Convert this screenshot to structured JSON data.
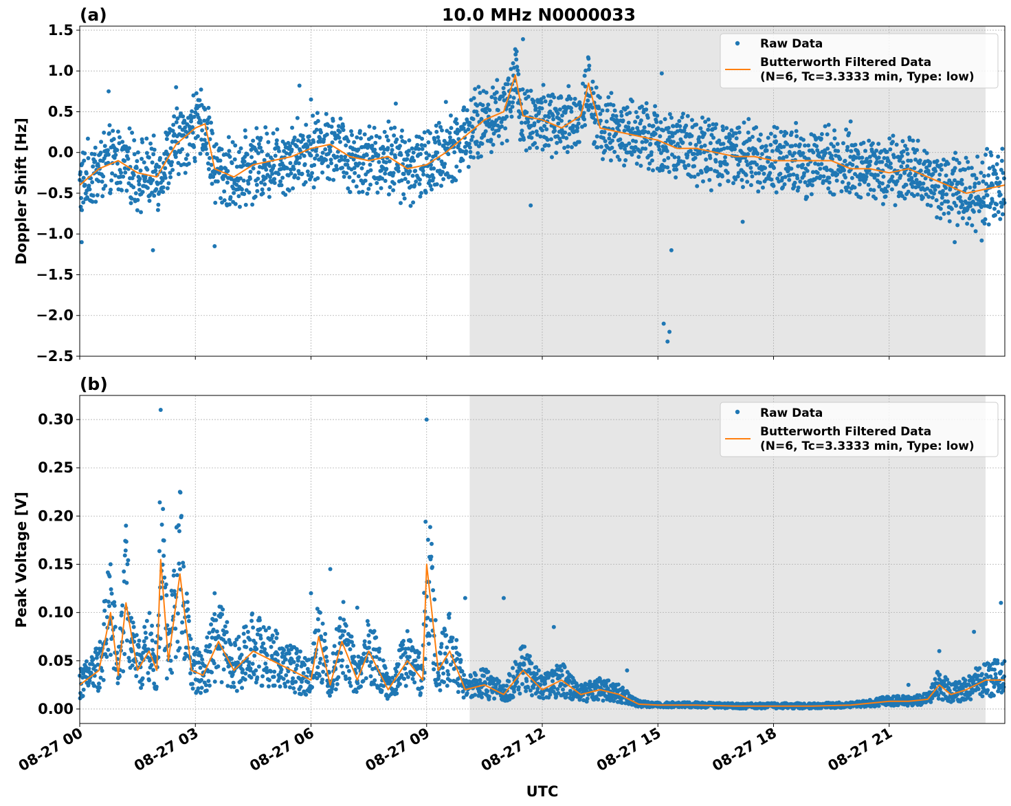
{
  "figure": {
    "title": "10.0 MHz N0000033",
    "xlabel": "UTC",
    "x_tick_labels": [
      "08-27 00",
      "08-27 03",
      "08-27 06",
      "08-27 09",
      "08-27 12",
      "08-27 15",
      "08-27 18",
      "08-27 21"
    ],
    "night_shading": {
      "start": "08-27 10:07",
      "end": "08-27 23:30",
      "color": "#e6e6e6"
    }
  },
  "legend": {
    "raw_label": "Raw Data",
    "filtered_label_line1": "Butterworth Filtered Data",
    "filtered_label_line2": "(N=6, Tc=3.3333 min, Type: low)"
  },
  "colors": {
    "raw": "#1f77b4",
    "filtered": "#ff7f0e",
    "shade": "#e6e6e6",
    "grid": "#b0b0b0"
  },
  "chart_data": [
    {
      "type": "scatter",
      "panel_label": "(a)",
      "ylabel": "Doppler Shift [Hz]",
      "ylim": [
        -2.5,
        1.55
      ],
      "xlim": [
        "08-27 00:00",
        "08-28 00:00"
      ],
      "y_ticks": [
        1.5,
        1.0,
        0.5,
        0.0,
        -0.5,
        -1.0,
        -1.5,
        -2.0,
        -2.5
      ],
      "y_tick_labels": [
        "1.5",
        "1.0",
        "0.5",
        "0.0",
        "−0.5",
        "−1.0",
        "−1.5",
        "−2.0",
        "−2.5"
      ],
      "legend_position": "top-right",
      "grid": true,
      "series": [
        {
          "name": "Butterworth Filtered Data",
          "x_hours": [
            0,
            0.5,
            1,
            1.5,
            2,
            2.5,
            3,
            3.25,
            3.5,
            4,
            4.5,
            5,
            5.5,
            6,
            6.5,
            7,
            7.5,
            8,
            8.5,
            9,
            9.5,
            10,
            10.5,
            11,
            11.3,
            11.5,
            12,
            12.5,
            13,
            13.2,
            13.5,
            14,
            14.5,
            15,
            15.5,
            16,
            16.5,
            17,
            17.5,
            18,
            18.5,
            19,
            19.5,
            20,
            20.5,
            21,
            21.5,
            22,
            22.5,
            23,
            23.5,
            24
          ],
          "y": [
            -0.4,
            -0.2,
            -0.1,
            -0.25,
            -0.3,
            0.1,
            0.3,
            0.35,
            -0.2,
            -0.3,
            -0.15,
            -0.1,
            -0.05,
            0.05,
            0.1,
            -0.05,
            -0.1,
            -0.05,
            -0.2,
            -0.15,
            0.0,
            0.2,
            0.4,
            0.5,
            0.95,
            0.45,
            0.4,
            0.3,
            0.45,
            0.85,
            0.3,
            0.25,
            0.2,
            0.15,
            0.05,
            0.05,
            0.0,
            -0.05,
            -0.05,
            -0.1,
            -0.1,
            -0.1,
            -0.1,
            -0.2,
            -0.2,
            -0.25,
            -0.2,
            -0.3,
            -0.4,
            -0.5,
            -0.45,
            -0.4
          ]
        },
        {
          "name": "Raw Data",
          "x_hours": [
            0.05,
            0.75,
            1.9,
            2.5,
            2.95,
            3.5,
            5.7,
            6.0,
            8.2,
            9.5,
            11.5,
            11.7,
            13.2,
            15.1,
            15.15,
            15.25,
            15.3,
            15.35,
            17.2,
            20.0,
            22.7,
            23.4
          ],
          "y": [
            -1.1,
            0.75,
            -1.2,
            0.8,
            0.7,
            -1.15,
            0.82,
            0.65,
            0.6,
            0.62,
            1.39,
            -0.65,
            1.15,
            0.97,
            -2.1,
            -2.32,
            -2.2,
            -1.2,
            -0.85,
            0.38,
            -1.1,
            -1.08
          ]
        }
      ]
    },
    {
      "type": "scatter",
      "panel_label": "(b)",
      "ylabel": "Peak Voltage [V]",
      "ylim": [
        -0.015,
        0.325
      ],
      "xlim": [
        "08-27 00:00",
        "08-28 00:00"
      ],
      "y_ticks": [
        0.3,
        0.25,
        0.2,
        0.15,
        0.1,
        0.05,
        0.0
      ],
      "y_tick_labels": [
        "0.30",
        "0.25",
        "0.20",
        "0.15",
        "0.10",
        "0.05",
        "0.00"
      ],
      "legend_position": "top-right",
      "grid": true,
      "series": [
        {
          "name": "Butterworth Filtered Data",
          "x_hours": [
            0,
            0.5,
            0.8,
            1.0,
            1.2,
            1.5,
            1.8,
            2.0,
            2.1,
            2.3,
            2.6,
            2.9,
            3.2,
            3.6,
            4.0,
            4.5,
            5.0,
            5.5,
            6.0,
            6.2,
            6.5,
            6.8,
            7.2,
            7.5,
            8.0,
            8.5,
            8.9,
            9.0,
            9.3,
            9.6,
            10.0,
            10.5,
            11.0,
            11.5,
            12.0,
            12.5,
            13.0,
            13.5,
            14.0,
            14.5,
            15.0,
            16.0,
            17.0,
            18.0,
            19.0,
            20.0,
            21.0,
            21.5,
            22.0,
            22.3,
            22.6,
            23.0,
            23.5,
            24
          ],
          "y": [
            0.025,
            0.04,
            0.1,
            0.035,
            0.11,
            0.04,
            0.06,
            0.04,
            0.155,
            0.05,
            0.14,
            0.04,
            0.035,
            0.07,
            0.04,
            0.06,
            0.05,
            0.04,
            0.03,
            0.075,
            0.025,
            0.07,
            0.03,
            0.06,
            0.02,
            0.05,
            0.03,
            0.15,
            0.04,
            0.06,
            0.02,
            0.025,
            0.015,
            0.04,
            0.02,
            0.03,
            0.015,
            0.02,
            0.015,
            0.005,
            0.004,
            0.004,
            0.003,
            0.003,
            0.003,
            0.004,
            0.008,
            0.008,
            0.01,
            0.025,
            0.015,
            0.02,
            0.03,
            0.03
          ]
        },
        {
          "name": "Raw Data",
          "x_hours": [
            0.8,
            1.2,
            2.1,
            2.6,
            3.5,
            6.0,
            6.5,
            7.2,
            9.0,
            10.0,
            11.0,
            12.3,
            14.2,
            21.5,
            22.3,
            23.2,
            23.9
          ],
          "y": [
            0.15,
            0.19,
            0.31,
            0.225,
            0.12,
            0.12,
            0.145,
            0.105,
            0.3,
            0.115,
            0.115,
            0.085,
            0.04,
            0.025,
            0.06,
            0.08,
            0.11
          ]
        }
      ]
    }
  ]
}
